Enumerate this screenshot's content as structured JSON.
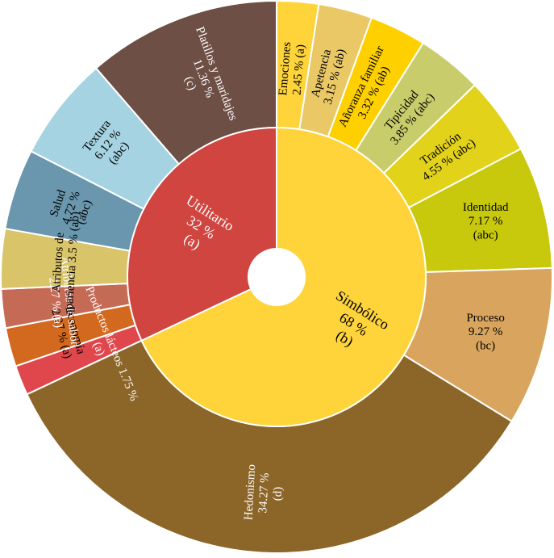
{
  "chart_data": {
    "type": "sunburst",
    "title": "",
    "inner": [
      {
        "name": "Simbólico",
        "value": 68,
        "label_lines": [
          "Simbólico",
          "68 %",
          "(b)"
        ],
        "color": "#FFD43B",
        "text_color": "#000000"
      },
      {
        "name": "Utilitario",
        "value": 32,
        "label_lines": [
          "Utilitario",
          "32 %",
          "(a)"
        ],
        "color": "#D0453F",
        "text_color": "#FFFFFF"
      }
    ],
    "outer": [
      {
        "name": "Emociones",
        "value": 2.45,
        "parent": "Simbólico",
        "label_lines": [
          "Emociones",
          "2.45 % (a)"
        ],
        "color": "#FFD43B",
        "text_color": "#000000"
      },
      {
        "name": "Apetencia",
        "value": 3.15,
        "parent": "Simbólico",
        "label_lines": [
          "Apetencia",
          "3.15 % (ab)"
        ],
        "color": "#EBC866",
        "text_color": "#000000"
      },
      {
        "name": "Añoranza familiar",
        "value": 3.32,
        "parent": "Simbólico",
        "label_lines": [
          "Añoranza familiar",
          "3.32 % (ab)"
        ],
        "color": "#FFD000",
        "text_color": "#000000"
      },
      {
        "name": "Tipicidad",
        "value": 3.85,
        "parent": "Simbólico",
        "label_lines": [
          "Tipicidad",
          "3.85 % (abc)"
        ],
        "color": "#C9CC6A",
        "text_color": "#000000"
      },
      {
        "name": "Tradición",
        "value": 4.55,
        "parent": "Simbólico",
        "label_lines": [
          "Tradición",
          "4.55 % (abc)"
        ],
        "color": "#E3D21A",
        "text_color": "#000000"
      },
      {
        "name": "Identidad",
        "value": 7.17,
        "parent": "Simbólico",
        "label_lines": [
          "Identidad",
          "7.17 %",
          "(abc)"
        ],
        "color": "#C8C80C",
        "text_color": "#000000"
      },
      {
        "name": "Proceso",
        "value": 9.27,
        "parent": "Simbólico",
        "label_lines": [
          "Proceso",
          "9.27 %",
          "(bc)"
        ],
        "color": "#D9A55E",
        "text_color": "#000000"
      },
      {
        "name": "Hedonismo",
        "value": 34.27,
        "parent": "Simbólico",
        "label_lines": [
          "Hedonismo",
          "34.27 %",
          "(d)"
        ],
        "color": "#8C6528",
        "text_color": "#FFFFFF"
      },
      {
        "name": "Productos lácteos",
        "value": 1.75,
        "parent": "Utilitario",
        "label_lines": [
          "Productos lácteos 1.75 %",
          "(a)"
        ],
        "color": "#E0474C",
        "text_color": "#FFFFFF"
      },
      {
        "name": "Economía",
        "value": 2.27,
        "parent": "Utilitario",
        "label_lines": [
          "Economía",
          "2.27 % (a)"
        ],
        "color": "#D2691E",
        "text_color": "#000000"
      },
      {
        "name": "Atributos de sabor",
        "value": 2.27,
        "parent": "Utilitario",
        "label_lines": [
          "Atributos de sabor",
          "2.27 % (a)"
        ],
        "color": "#C56A55",
        "text_color": "#FFFFFF"
      },
      {
        "name": "Atributos de apariencia",
        "value": 3.5,
        "parent": "Utilitario",
        "label_lines": [
          "Atributos de",
          "apariencia 3.5 % (ab)"
        ],
        "color": "#D9C46A",
        "text_color": "#000000"
      },
      {
        "name": "Salud",
        "value": 4.72,
        "parent": "Utilitario",
        "label_lines": [
          "Salud",
          "4.72 %",
          "(abc)"
        ],
        "color": "#6A97AD",
        "text_color": "#000000"
      },
      {
        "name": "Textura",
        "value": 6.12,
        "parent": "Utilitario",
        "label_lines": [
          "Textura",
          "6.12 %",
          "(abc)"
        ],
        "color": "#A6D3E2",
        "text_color": "#000000"
      },
      {
        "name": "Platillos y maridajes",
        "value": 11.36,
        "parent": "Utilitario",
        "label_lines": [
          "Platillos y maridajes",
          "11.36 %",
          "(c)"
        ],
        "color": "#6E4F45",
        "text_color": "#FFFFFF"
      }
    ]
  }
}
